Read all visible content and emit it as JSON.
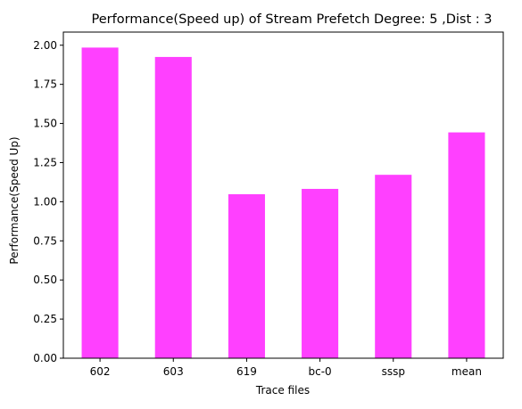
{
  "chart_data": {
    "type": "bar",
    "title": "Performance(Speed up) of Stream Prefetch Degree: 5 ,Dist : 3",
    "xlabel": "Trace files",
    "ylabel": "Performance(Speed Up)",
    "categories": [
      "602",
      "603",
      "619",
      "bc-0",
      "sssp",
      "mean"
    ],
    "series": [
      {
        "values": [
          1.985,
          1.925,
          1.048,
          1.082,
          1.172,
          1.443
        ]
      }
    ],
    "ylim": [
      0,
      2.084
    ],
    "yticks": [
      "0.00",
      "0.25",
      "0.50",
      "0.75",
      "1.00",
      "1.25",
      "1.50",
      "1.75",
      "2.00"
    ],
    "grid": false,
    "legend": "none",
    "colors": {
      "bar": "#ff40ff",
      "axis": "#000000",
      "background": "#ffffff"
    }
  }
}
